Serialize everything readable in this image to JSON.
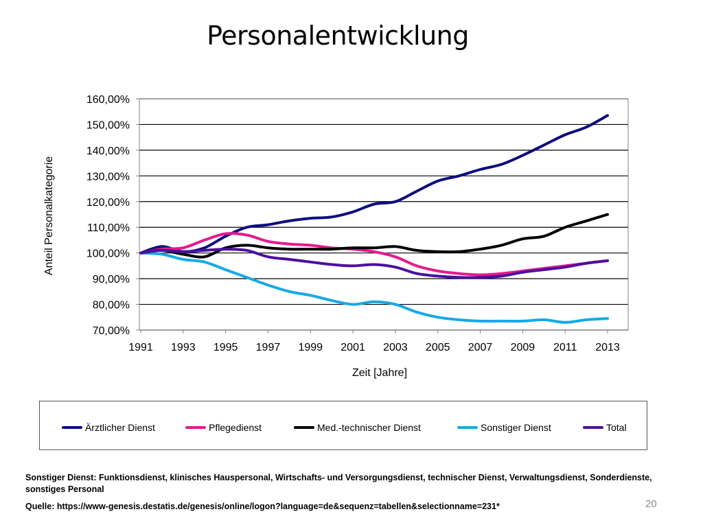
{
  "slide": {
    "title": "Personalentwicklung",
    "footnote": "Sonstiger Dienst: Funktionsdienst, klinisches Hauspersonal, Wirtschafts- und Versorgungsdienst, technischer Dienst, Verwaltungsdienst, Sonderdienste, sonstiges Personal",
    "source": "Quelle: https://www-genesis.destatis.de/genesis/online/logon?language=de&sequenz=tabellen&selectionname=231*",
    "page_number": "20"
  },
  "chart_data": {
    "type": "line",
    "xlabel": "Zeit [Jahre]",
    "ylabel": "Anteil Personalkategorie",
    "ylim": [
      70,
      160
    ],
    "xlim": [
      1991,
      2013
    ],
    "x_ticks": [
      "1991",
      "1993",
      "1995",
      "1997",
      "1999",
      "2001",
      "2003",
      "2005",
      "2007",
      "2009",
      "2011",
      "2013"
    ],
    "y_ticks": [
      "70,00%",
      "80,00%",
      "90,00%",
      "100,00%",
      "110,00%",
      "120,00%",
      "130,00%",
      "140,00%",
      "150,00%",
      "160,00%"
    ],
    "grid": "horizontal",
    "legend_position": "bottom",
    "x": [
      1991,
      1992,
      1993,
      1994,
      1995,
      1996,
      1997,
      1998,
      1999,
      2000,
      2001,
      2002,
      2003,
      2004,
      2005,
      2006,
      2007,
      2008,
      2009,
      2010,
      2011,
      2012,
      2013
    ],
    "series": [
      {
        "name": "Ärztlicher Dienst",
        "color": "#0d0d80",
        "values": [
          100,
          102.5,
          100.5,
          102,
          106.5,
          110,
          111,
          112.5,
          113.5,
          114,
          116,
          119,
          120,
          124,
          128,
          130,
          132.5,
          134.5,
          138,
          142,
          146,
          149,
          153.5
        ]
      },
      {
        "name": "Pflegedienst",
        "color": "#e6198c",
        "values": [
          100,
          101.5,
          102,
          105,
          107.5,
          107,
          104.5,
          103.5,
          103,
          102,
          101.5,
          100.5,
          98.5,
          95,
          93,
          92,
          91.5,
          92,
          93,
          94,
          95,
          96,
          97
        ]
      },
      {
        "name": "Med.-technischer Dienst",
        "color": "#000000",
        "values": [
          100,
          101,
          99.5,
          98.5,
          102,
          103,
          102,
          101.5,
          101.5,
          101.5,
          102,
          102,
          102.5,
          101,
          100.5,
          100.5,
          101.5,
          103,
          105.5,
          106.5,
          110,
          112.5,
          115
        ]
      },
      {
        "name": "Sonstiger Dienst",
        "color": "#17a9e6",
        "values": [
          100,
          99.5,
          97.5,
          96.5,
          93.5,
          90.5,
          87.5,
          85,
          83.5,
          81.5,
          80,
          81,
          80,
          77,
          75,
          74,
          73.5,
          73.5,
          73.5,
          74,
          73,
          74,
          74.5
        ]
      },
      {
        "name": "Total",
        "color": "#4b0fa0",
        "values": [
          100,
          101,
          100.5,
          101,
          101.5,
          101,
          98.5,
          97.5,
          96.5,
          95.5,
          95,
          95.5,
          94.5,
          92,
          91,
          90.5,
          90.5,
          91,
          92.5,
          93.5,
          94.5,
          96,
          97
        ]
      }
    ]
  }
}
